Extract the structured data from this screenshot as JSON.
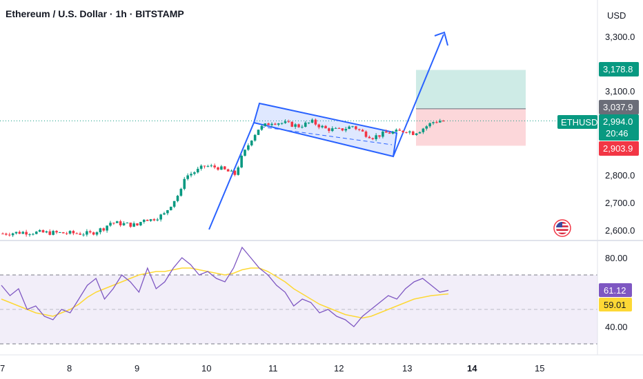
{
  "header": {
    "title": "Ethereum / U.S. Dollar · 1h · BITSTAMP",
    "currency": "USD"
  },
  "colors": {
    "up": "#089981",
    "down": "#f23645",
    "pattern": "#2962ff",
    "rsi_line": "#7e57c2",
    "rsi_ma": "#fdd835"
  },
  "price_axis": {
    "min": 2580,
    "max": 3380,
    "ticks": [
      "2,600.0",
      "2,700.0",
      "2,800.0",
      "2,900.0",
      "3,100.0",
      "3,300.0"
    ]
  },
  "rsi_axis": {
    "ticks": [
      "80.00",
      "40.00"
    ]
  },
  "time_axis": {
    "labels": [
      "7",
      "8",
      "9",
      "10",
      "11",
      "12",
      "13",
      "14",
      "15"
    ]
  },
  "badges": {
    "target": "3,178.8",
    "entry": "3,037.9",
    "last_price": "2,994.0",
    "countdown": "20:46",
    "stop": "2,903.9",
    "symbol": "ETHUSD",
    "rsi": "61.12",
    "rsi_ma": "59.01"
  },
  "icons": {
    "flag": "us-flag-icon"
  },
  "chart_data": [
    {
      "type": "candlestick",
      "title": "Ethereum / U.S. Dollar · 1h · BITSTAMP",
      "x_labels": [
        "7",
        "8",
        "9",
        "10",
        "11",
        "12",
        "13",
        "14",
        "15"
      ],
      "ylim": [
        2580,
        3380
      ],
      "y_ticks": [
        2600,
        2700,
        2800,
        2900,
        3100,
        3300
      ],
      "close_path": [
        [
          0.0,
          2585
        ],
        [
          0.3,
          2590
        ],
        [
          1.3,
          2585
        ],
        [
          1.5,
          2605
        ],
        [
          1.6,
          2625
        ],
        [
          1.8,
          2620
        ],
        [
          2.0,
          2615
        ],
        [
          2.1,
          2640
        ],
        [
          2.2,
          2635
        ],
        [
          2.4,
          2655
        ],
        [
          2.5,
          2690
        ],
        [
          2.65,
          2740
        ],
        [
          2.7,
          2790
        ],
        [
          2.9,
          2815
        ],
        [
          3.0,
          2830
        ],
        [
          3.2,
          2825
        ],
        [
          3.35,
          2810
        ],
        [
          3.45,
          2800
        ],
        [
          3.55,
          2860
        ],
        [
          3.7,
          2930
        ],
        [
          3.8,
          2965
        ],
        [
          4.0,
          2990
        ],
        [
          4.2,
          2985
        ],
        [
          4.4,
          2975
        ],
        [
          4.6,
          2990
        ],
        [
          4.8,
          2965
        ],
        [
          5.0,
          2960
        ],
        [
          5.2,
          2975
        ],
        [
          5.4,
          2945
        ],
        [
          5.5,
          2935
        ],
        [
          5.7,
          2950
        ],
        [
          5.9,
          2955
        ],
        [
          6.0,
          2960
        ],
        [
          6.1,
          2950
        ],
        [
          6.2,
          2960
        ],
        [
          6.3,
          2975
        ],
        [
          6.4,
          2990
        ],
        [
          6.5,
          2995
        ],
        [
          6.55,
          2994
        ]
      ],
      "last_price": 2994.0,
      "position": {
        "entry": 3037.9,
        "target": 3178.8,
        "stop": 2903.9
      },
      "annotations": [
        "bull flag channel",
        "breakout arrow"
      ]
    },
    {
      "type": "line",
      "title": "RSI",
      "y_ticks": [
        80,
        40
      ],
      "band": [
        70,
        30
      ],
      "series": [
        {
          "values": [
            64,
            58,
            62,
            50,
            52,
            46,
            44,
            50,
            48,
            56,
            64,
            68,
            56,
            62,
            70,
            66,
            60,
            74,
            62,
            66,
            74,
            80,
            76,
            70,
            72,
            68,
            66,
            74,
            86,
            80,
            74,
            70,
            64,
            60,
            52,
            56,
            54,
            48,
            50,
            46,
            44,
            40,
            46,
            50,
            54,
            58,
            56,
            62,
            66,
            68,
            64,
            60,
            61.12
          ]
        },
        {
          "values": [
            56,
            54,
            52,
            50,
            48,
            47,
            46,
            48,
            50,
            53,
            57,
            60,
            62,
            64,
            66,
            68,
            70,
            71,
            72,
            72,
            73,
            74,
            74,
            73,
            72,
            71,
            70,
            71,
            73,
            74,
            74,
            72,
            69,
            66,
            62,
            59,
            56,
            53,
            51,
            49,
            47,
            46,
            45,
            46,
            48,
            50,
            52,
            54,
            56,
            57,
            58,
            58.5,
            59.01
          ]
        }
      ]
    }
  ]
}
